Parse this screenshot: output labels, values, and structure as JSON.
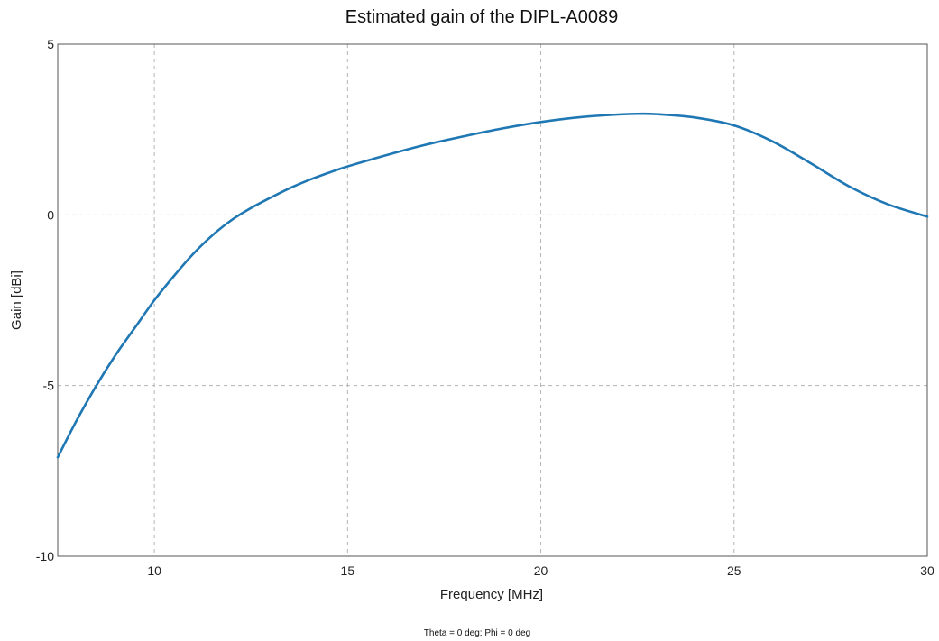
{
  "chart_data": {
    "type": "line",
    "title": "Estimated gain of the DIPL-A0089",
    "xlabel": "Frequency [MHz]",
    "ylabel": "Gain [dBi]",
    "footnote": "Theta = 0 deg; Phi = 0 deg",
    "xlim": [
      7.5,
      30
    ],
    "ylim": [
      -10,
      5
    ],
    "xticks": [
      10,
      15,
      20,
      25,
      30
    ],
    "yticks": [
      5,
      0,
      -5,
      -10
    ],
    "xtick_labels": [
      "10",
      "15",
      "20",
      "25",
      "30"
    ],
    "ytick_labels": [
      "5",
      "0",
      "-5",
      "-10"
    ],
    "grid": true,
    "series": [
      {
        "color": "#1f77b4",
        "x": [
          7.5,
          8.0,
          8.5,
          9.0,
          9.5,
          10.0,
          10.5,
          11.0,
          11.5,
          12.0,
          12.5,
          13.0,
          13.5,
          14.0,
          14.5,
          15.0,
          16.0,
          17.0,
          18.0,
          19.0,
          20.0,
          21.0,
          22.0,
          22.5,
          23.0,
          24.0,
          25.0,
          26.0,
          27.0,
          28.0,
          29.0,
          30.0
        ],
        "y": [
          -7.1,
          -6.0,
          -5.0,
          -4.1,
          -3.3,
          -2.5,
          -1.8,
          -1.15,
          -0.6,
          -0.15,
          0.2,
          0.5,
          0.78,
          1.02,
          1.23,
          1.42,
          1.75,
          2.05,
          2.3,
          2.53,
          2.72,
          2.86,
          2.94,
          2.96,
          2.95,
          2.85,
          2.62,
          2.15,
          1.5,
          0.82,
          0.3,
          -0.05
        ]
      }
    ]
  }
}
